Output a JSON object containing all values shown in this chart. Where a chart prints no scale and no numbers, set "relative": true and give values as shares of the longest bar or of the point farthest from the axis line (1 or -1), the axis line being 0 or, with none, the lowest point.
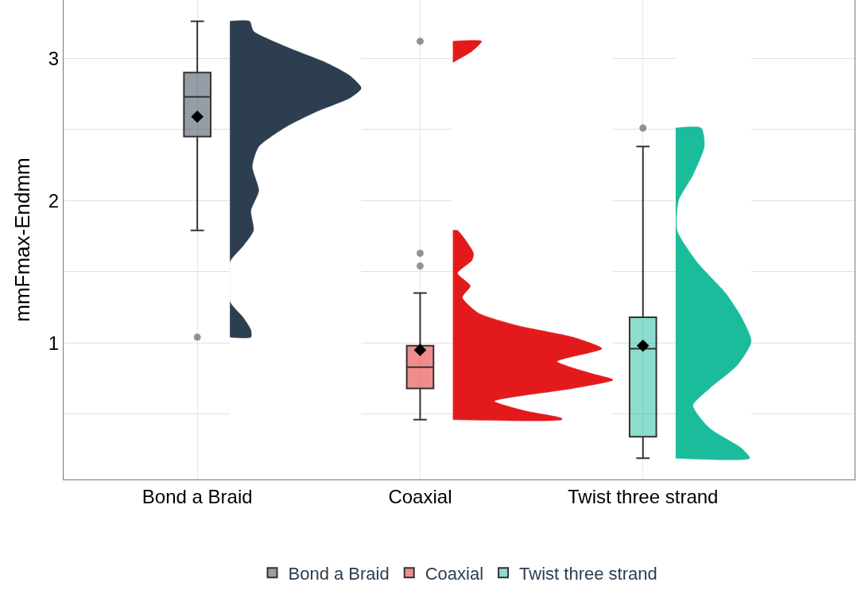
{
  "chart_data": [
    {
      "type": "box",
      "ylabel": "mmFmax-Endmm",
      "categories": [
        "Bond a Braid",
        "Coaxial",
        "Twist three strand"
      ],
      "ylim": [
        0.04,
        3.41
      ],
      "yticks": [
        {
          "value": 0.5,
          "label": null
        },
        1,
        {
          "value": 1.5,
          "label": null
        },
        2,
        {
          "value": 2.5,
          "label": null
        },
        3
      ],
      "grid": true,
      "legend": "bottom",
      "marker": "diamond",
      "series": [
        {
          "name": "Bond a Braid",
          "color": "#2c3e50",
          "boxes": [
            {
              "low": 1.79,
              "q1": 2.45,
              "median": 2.73,
              "q3": 2.9,
              "high": 3.26,
              "mean": 2.59,
              "outliers": [
                1.04
              ]
            },
            null,
            null
          ]
        },
        {
          "name": "Coaxial",
          "color": "#e31a1c",
          "boxes": [
            null,
            {
              "low": 0.46,
              "q1": 0.68,
              "median": 0.83,
              "q3": 0.98,
              "high": 1.35,
              "mean": 0.95,
              "outliers": [
                3.12,
                1.63,
                1.54
              ]
            },
            null
          ]
        },
        {
          "name": "Twist three strand",
          "color": "#1abc9c",
          "boxes": [
            null,
            null,
            {
              "low": 0.19,
              "q1": 0.34,
              "median": 0.96,
              "q3": 1.18,
              "high": 2.38,
              "mean": 0.98,
              "outliers": [
                2.51
              ]
            }
          ]
        }
      ]
    },
    {
      "type": "area",
      "orientation": "horizontal",
      "relative": true,
      "ylim": [
        0.04,
        3.41
      ],
      "color": "#2c3e50",
      "x": [
        3.26,
        3.19,
        3.08,
        2.97,
        2.88,
        2.79,
        2.72,
        2.63,
        2.52,
        2.38,
        2.24,
        2.07,
        1.93,
        1.79,
        1.68,
        1.57,
        1.29,
        1.18,
        1.09,
        1.04
      ],
      "values": [
        0.15,
        0.18,
        0.43,
        0.73,
        0.91,
        1,
        0.91,
        0.67,
        0.43,
        0.22,
        0.17,
        0.22,
        0.16,
        0.18,
        0.1,
        0,
        0,
        0.1,
        0.16,
        0.16
      ]
    },
    {
      "type": "area",
      "orientation": "horizontal",
      "relative": true,
      "ylim": [
        0.04,
        3.41
      ],
      "color": "#e31a1c",
      "x": [
        3.12,
        3.05,
        2.97,
        null,
        1.79,
        1.63,
        1.58,
        1.49,
        1.4,
        1.32,
        1.21,
        1.12,
        1.04,
        0.96,
        0.87,
        0.79,
        0.74,
        0.68,
        0.59,
        0.52,
        0.47,
        0.46
      ],
      "values": [
        0.18,
        0.12,
        0,
        null,
        0.03,
        0.13,
        0.12,
        0.03,
        0.11,
        0.06,
        0.16,
        0.41,
        0.75,
        0.93,
        0.65,
        0.85,
        1,
        0.75,
        0.26,
        0.46,
        0.68,
        0.68
      ]
    },
    {
      "type": "area",
      "orientation": "horizontal",
      "relative": true,
      "ylim": [
        0.04,
        3.41
      ],
      "color": "#1abc9c",
      "x": [
        2.51,
        2.38,
        2.18,
        2.0,
        1.79,
        1.57,
        1.35,
        1.18,
        1.01,
        0.84,
        0.68,
        0.56,
        0.4,
        0.26,
        0.19
      ],
      "values": [
        0.34,
        0.38,
        0.23,
        0.04,
        0.02,
        0.28,
        0.66,
        0.87,
        1,
        0.81,
        0.45,
        0.23,
        0.45,
        0.87,
        0.98
      ]
    }
  ]
}
